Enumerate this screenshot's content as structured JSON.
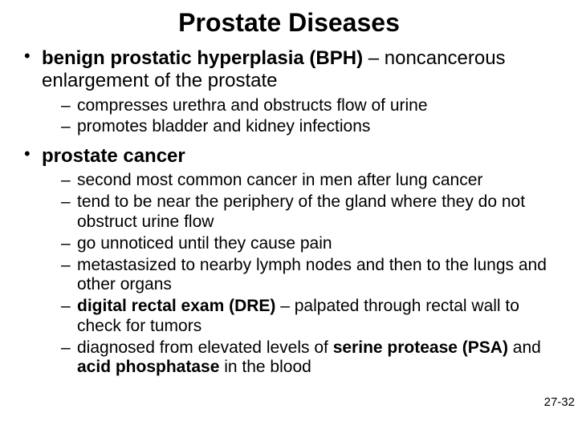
{
  "title": "Prostate Diseases",
  "title_fontsize": 32,
  "body_fontsize_l1": 24,
  "body_fontsize_l2": 21,
  "line_height_l1": 1.18,
  "line_height_l2": 1.18,
  "text_color": "#000000",
  "background_color": "#ffffff",
  "page_number": "27-32",
  "page_number_fontsize": 15,
  "bullets": [
    {
      "lead": "benign prostatic hyperplasia (BPH)",
      "sep": " – ",
      "rest": "noncancerous enlargement of the prostate",
      "sub": [
        {
          "text": "compresses urethra and obstructs flow of urine"
        },
        {
          "text": "promotes bladder and kidney infections"
        }
      ]
    },
    {
      "lead": "prostate cancer",
      "sep": "",
      "rest": "",
      "sub": [
        {
          "text": "second most common cancer in men after lung cancer"
        },
        {
          "text": "tend to be near the periphery of the gland where they do not obstruct urine flow"
        },
        {
          "text": "go unnoticed until they cause pain"
        },
        {
          "text": "metastasized to nearby lymph nodes and then to the lungs and other organs"
        },
        {
          "pre": "",
          "bold1": "digital rectal exam (DRE)",
          "mid": " – palpated through rectal wall to check for tumors",
          "bold2": "",
          "post": ""
        },
        {
          "pre": "diagnosed from elevated levels of ",
          "bold1": "serine protease (PSA)",
          "mid": " and ",
          "bold2": "acid phosphatase",
          "post": " in the blood"
        }
      ]
    }
  ]
}
